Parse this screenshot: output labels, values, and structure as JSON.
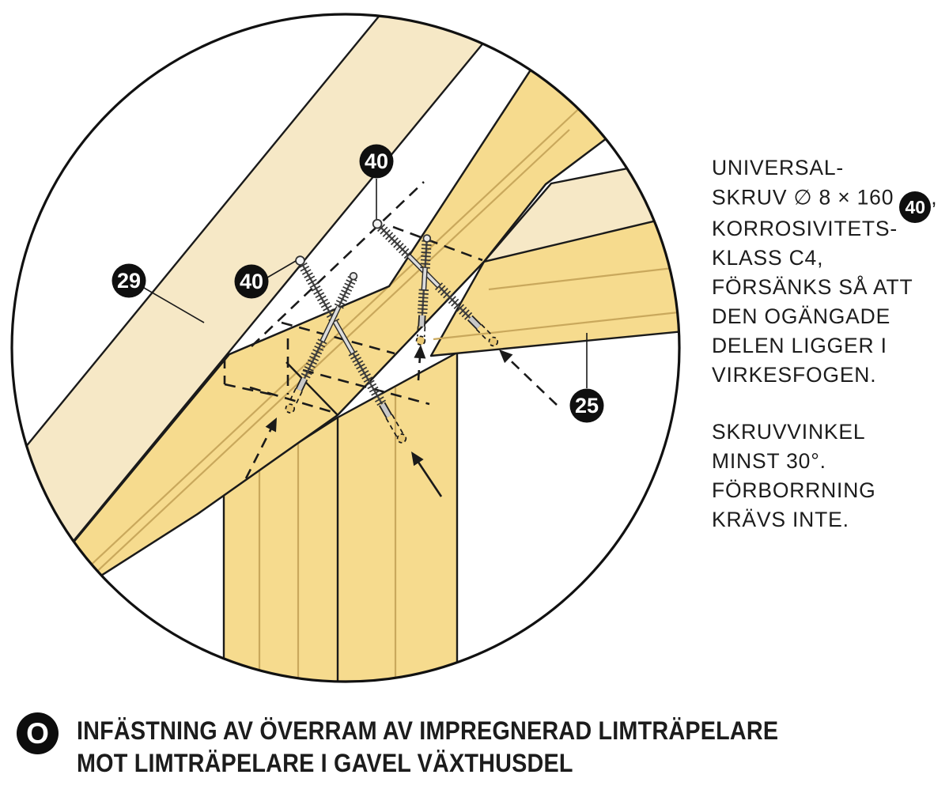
{
  "diagram": {
    "badges": {
      "top_screw": "40",
      "left_screw": "40",
      "top_chord": "29",
      "beam": "25"
    },
    "colors": {
      "wood_light": "#F6E8C6",
      "wood_dark": "#F6DB8E",
      "grain": "#C9A85C",
      "outline": "#1A1A1A",
      "badge": "#0F0F0F"
    }
  },
  "text_panel": {
    "para1": [
      "UNIVERSAL-",
      "SKRUV ∅ 8 × 160",
      "KORROSIVITETS-",
      "KLASS C4,",
      "FÖRSÄNKS SÅ ATT",
      "DEN OGÄNGADE",
      "DELEN LIGGER I",
      "VIRKESFOGEN."
    ],
    "para1_badge": "40",
    "para1_badge_suffix": ",",
    "para2": [
      "SKRUVVINKEL",
      "MINST 30°.",
      "FÖRBORRNING",
      "KRÄVS INTE."
    ]
  },
  "caption": {
    "badge": "O",
    "line1": "INFÄSTNING AV ÖVERRAM AV IMPREGNERAD LIMTRÄPELARE",
    "line2": "MOT LIMTRÄPELARE I GAVEL VÄXTHUSDEL"
  }
}
